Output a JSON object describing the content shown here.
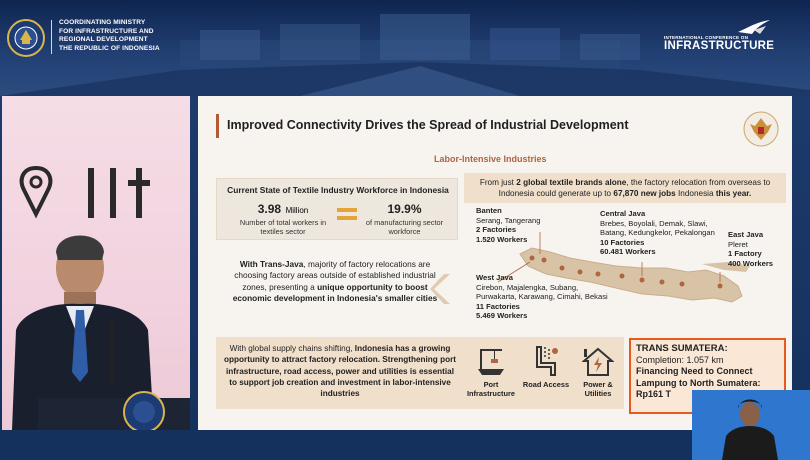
{
  "header": {
    "ministry_lines": [
      "COORDINATING MINISTRY",
      "FOR INFRASTRUCTURE AND",
      "REGIONAL DEVELOPMENT",
      "THE REPUBLIC OF INDONESIA"
    ],
    "conference_small": "INTERNATIONAL CONFERENCE ON",
    "conference_big": "INFRASTRUCTURE"
  },
  "slide": {
    "title": "Improved Connectivity Drives the Spread of Industrial Development",
    "subtitle": "Labor-Intensive Industries",
    "top_callout": {
      "pre": "From just ",
      "strong1": "2 global textile brands alone",
      "mid": ", the factory relocation from overseas to Indonesia could generate up to ",
      "strong2": "67,870 new jobs",
      "mid2": " Indonesia ",
      "strong3": "this year."
    },
    "workforce": {
      "title": "Current State of Textile Industry Workforce in Indonesia",
      "stat1_value": "3.98",
      "stat1_unit": "Million",
      "stat1_desc": "Number of total workers in textiles sector",
      "stat2_value": "19.9%",
      "stat2_desc": "of manufacturing sector workforce"
    },
    "transjava": {
      "strong1": "With Trans-Java",
      "text1": ", majority of factory relocations are choosing factory areas outside of established industrial zones, presenting a ",
      "strong2": "unique opportunity to boost economic development in Indonesia's smaller cities"
    },
    "regions": {
      "banten": {
        "name": "Banten",
        "cities": "Serang, Tangerang",
        "factories": "2 Factories",
        "workers": "1.520 Workers"
      },
      "central_java": {
        "name": "Central Java",
        "cities1": "Brebes, Boyolali, Demak, Slawi,",
        "cities2": "Batang, Kedungkelor, Pekalongan",
        "factories": "10 Factories",
        "workers": "60.481 Workers"
      },
      "east_java": {
        "name": "East Java",
        "cities": "Pleret",
        "factories": "1 Factory",
        "workers": "400 Workers"
      },
      "west_java": {
        "name": "West Java",
        "cities1": "Cirebon, Majalengka, Subang,",
        "cities2": "Purwakarta, Karawang, Cimahi, Bekasi",
        "factories": "11 Factories",
        "workers": "5.469 Workers"
      }
    },
    "bottom": {
      "text1": "With global supply chains shifting, ",
      "strong1": "Indonesia has a growing opportunity to attract factory relocation. Strengthening port infrastructure, road access, power and utilities is essential to support job creation and investment in labor-intensive industries",
      "icon_port": "Port Infrastructure",
      "icon_road": "Road Access",
      "icon_power": "Power & Utilities"
    },
    "sumatera": {
      "title": "TRANS SUMATERA:",
      "completion": "Completion: 1.057 km",
      "financing": "Financing Need to Connect",
      "route": "Lampung to North Sumatera:",
      "amount": "Rp161 T"
    }
  },
  "colors": {
    "accent": "#b35a33",
    "callout_bg": "#f0dfcb",
    "sumatera_border": "#e65a1e",
    "map_fill": "#d9c3a6"
  }
}
